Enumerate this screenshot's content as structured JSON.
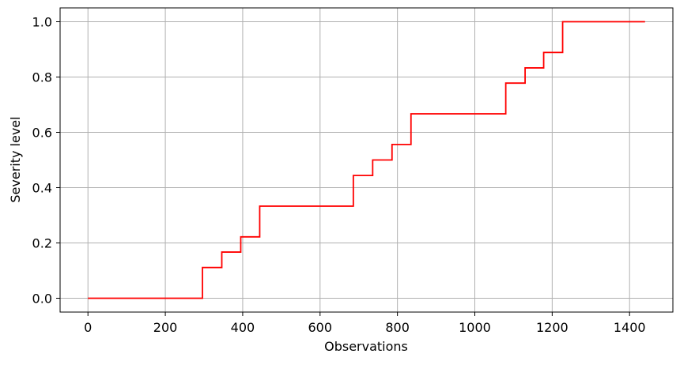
{
  "chart_data": {
    "type": "line",
    "title": "",
    "xlabel": "Observations",
    "ylabel": "Severity level",
    "xlim": [
      -72,
      1512
    ],
    "ylim": [
      -0.05,
      1.05
    ],
    "x_ticks": [
      0,
      200,
      400,
      600,
      800,
      1000,
      1200,
      1400
    ],
    "y_ticks": [
      0.0,
      0.2,
      0.4,
      0.6,
      0.8,
      1.0
    ],
    "y_tick_labels": [
      "0.0",
      "0.2",
      "0.4",
      "0.6",
      "0.8",
      "1.0"
    ],
    "grid": true,
    "legend": "none",
    "series": [
      {
        "color": "#ff0000",
        "step": "post",
        "x": [
          0,
          296,
          346,
          395,
          444,
          686,
          736,
          786,
          835,
          1080,
          1130,
          1178,
          1227,
          1440
        ],
        "y": [
          0.0,
          0.111,
          0.167,
          0.222,
          0.333,
          0.444,
          0.5,
          0.556,
          0.667,
          0.778,
          0.833,
          0.889,
          1.0,
          1.0
        ]
      }
    ]
  },
  "colors": {
    "line": "#ff0000",
    "grid": "#b0b0b0",
    "axes": "#000000"
  }
}
